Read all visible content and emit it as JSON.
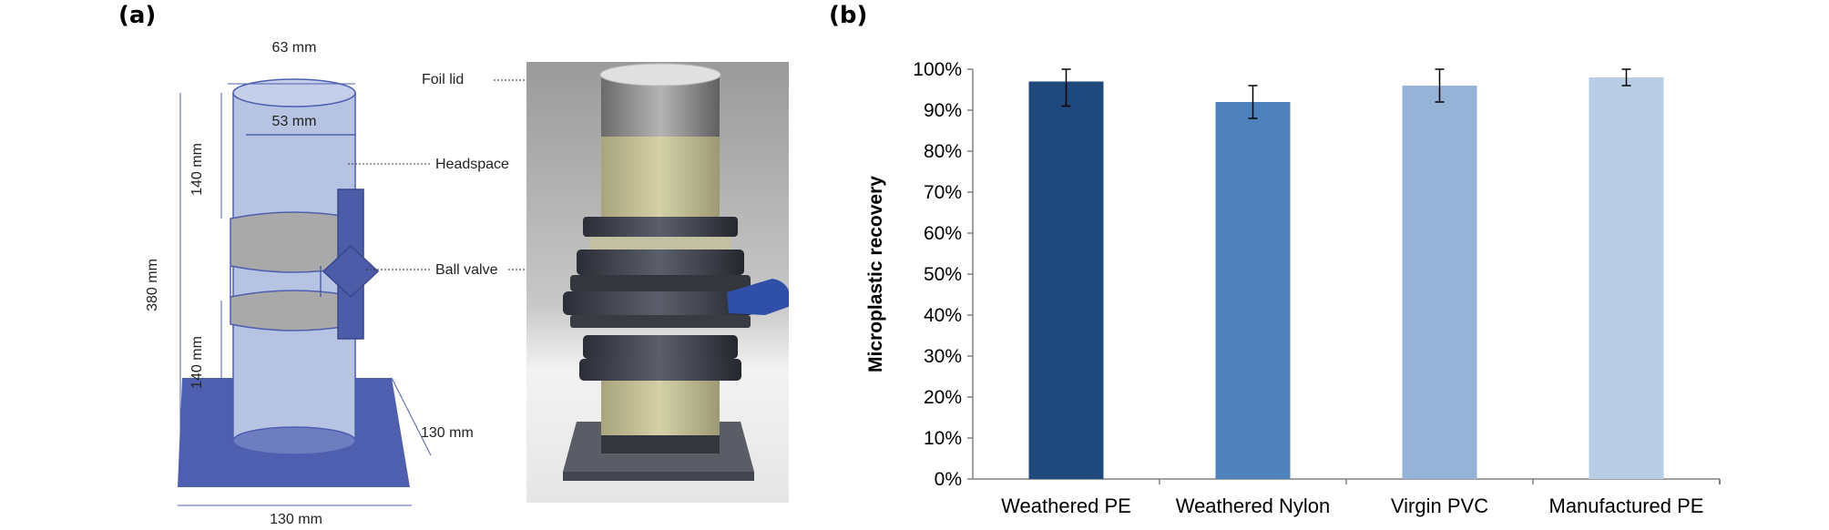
{
  "panels": {
    "a": "(a)",
    "b": "(b)"
  },
  "diagram": {
    "dim_outer_diameter": "63 mm",
    "dim_inner_diameter": "53 mm",
    "dim_total_height": "380 mm",
    "dim_upper_section": "140 mm",
    "dim_lower_section": "140 mm",
    "dim_base_depth": "130 mm",
    "dim_base_width": "130 mm"
  },
  "photo": {
    "label_foil_lid": "Foil lid",
    "label_headspace": "Headspace",
    "label_ball_valve": "Ball valve"
  },
  "colors": {
    "cylinder_fill": "#b7c3e3",
    "base_fill": "#4f5faf",
    "valve_fill": "#4d5ca8",
    "band_fill": "#a9a9a9"
  },
  "chart_data": {
    "type": "bar",
    "categories": [
      "Weathered PE",
      "Weathered Nylon",
      "Virgin PVC",
      "Manufactured PE"
    ],
    "values": [
      97,
      92,
      96,
      98
    ],
    "errors": [
      6,
      4,
      4,
      2
    ],
    "bar_colors": [
      "#1f497d",
      "#4f81bd",
      "#95b3d7",
      "#b9cde5"
    ],
    "ylabel": "Microplastic recovery",
    "ylim": [
      0,
      100
    ],
    "yticks": [
      0,
      10,
      20,
      30,
      40,
      50,
      60,
      70,
      80,
      90,
      100
    ],
    "ytick_labels": [
      "0%",
      "10%",
      "20%",
      "30%",
      "40%",
      "50%",
      "60%",
      "70%",
      "80%",
      "90%",
      "100%"
    ],
    "grid": false
  }
}
